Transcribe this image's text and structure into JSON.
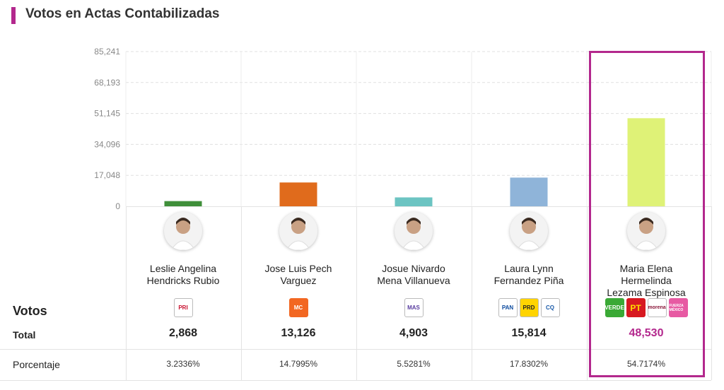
{
  "header": {
    "title": "Votos en Actas Contabilizadas",
    "accent_color": "#b3288d"
  },
  "rows": {
    "votos_label": "Votos",
    "total_label": "Total",
    "porcentaje_label": "Porcentaje"
  },
  "chart_data": {
    "type": "bar",
    "title": "Votos en Actas Contabilizadas",
    "y_ticks": [
      "0",
      "17,048",
      "34,096",
      "51,145",
      "68,193",
      "85,241"
    ],
    "ylim": [
      0,
      85241
    ],
    "grid": true,
    "categories": [
      "Leslie Angelina Hendricks Rubio",
      "Jose Luis Pech Varguez",
      "Josue Nivardo Mena Villanueva",
      "Laura Lynn Fernandez Piña",
      "Maria Elena Hermelinda Lezama Espinosa"
    ],
    "values": [
      2868,
      13126,
      4903,
      15814,
      48530
    ],
    "colors": [
      "#3f8f3a",
      "#e06b1c",
      "#6cc4c2",
      "#8fb4d9",
      "#dff277"
    ]
  },
  "candidates": [
    {
      "name_line1": "Leslie Angelina",
      "name_line2": "Hendricks Rubio",
      "name_line3": "",
      "party_logos": [
        "PRI"
      ],
      "total": "2,868",
      "percentage": "3.2336%"
    },
    {
      "name_line1": "Jose Luis Pech",
      "name_line2": "Varguez",
      "name_line3": "",
      "party_logos": [
        "MC"
      ],
      "total": "13,126",
      "percentage": "14.7995%"
    },
    {
      "name_line1": "Josue Nivardo",
      "name_line2": "Mena Villanueva",
      "name_line3": "",
      "party_logos": [
        "MAS"
      ],
      "total": "4,903",
      "percentage": "5.5281%"
    },
    {
      "name_line1": "Laura Lynn",
      "name_line2": "Fernandez Piña",
      "name_line3": "",
      "party_logos": [
        "PAN",
        "PRD",
        "CQ"
      ],
      "total": "15,814",
      "percentage": "17.8302%"
    },
    {
      "name_line1": "Maria Elena",
      "name_line2": "Hermelinda",
      "name_line3": "Lezama Espinosa",
      "party_logos": [
        "VERDE",
        "PT",
        "morena",
        "FUERZA MÉXICO"
      ],
      "total": "48,530",
      "percentage": "54.7174%"
    }
  ],
  "highlight_color": "#b3288d"
}
